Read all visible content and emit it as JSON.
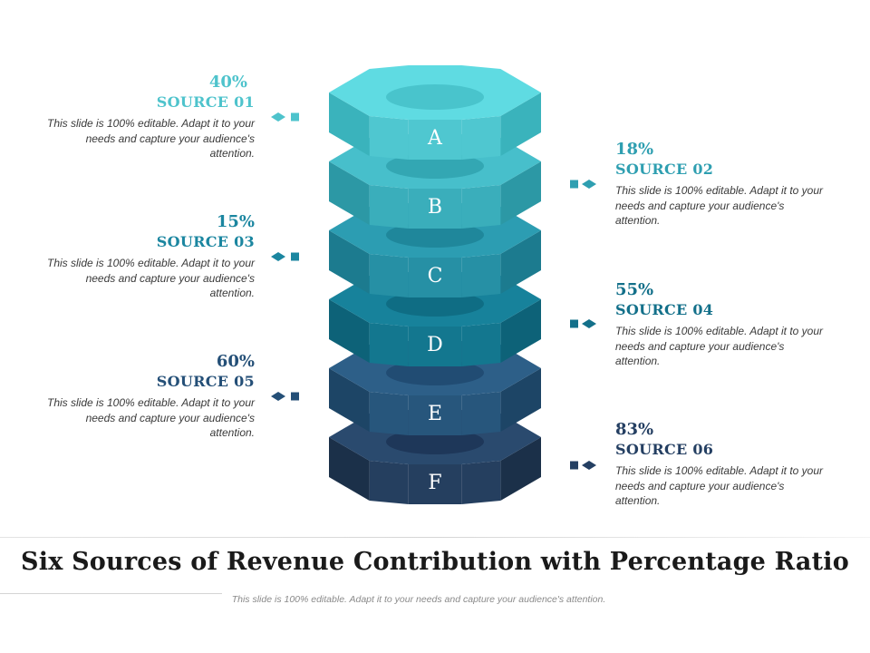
{
  "diagram": {
    "layers": [
      {
        "letter": "A",
        "top": "#5fdbe2",
        "side": "#4fc7d0",
        "side_dark": "#3ab3bc",
        "hole": "#49c4cc"
      },
      {
        "letter": "B",
        "top": "#47bfcb",
        "side": "#3aaebb",
        "side_dark": "#2c98a5",
        "hole": "#33a7b3"
      },
      {
        "letter": "C",
        "top": "#2c9db2",
        "side": "#2690a5",
        "side_dark": "#1c7b8f",
        "hole": "#1f879b"
      },
      {
        "letter": "D",
        "top": "#17829b",
        "side": "#13778f",
        "side_dark": "#0d6278",
        "hole": "#0f6d84"
      },
      {
        "letter": "E",
        "top": "#2d5f88",
        "side": "#27567c",
        "side_dark": "#1d4566",
        "hole": "#214c73"
      },
      {
        "letter": "F",
        "top": "#2a4a6e",
        "side": "#253f5f",
        "side_dark": "#1b3049",
        "hole": "#1e3759"
      }
    ]
  },
  "items": [
    {
      "pct": "40%",
      "source": "SOURCE 01",
      "desc": "This slide is 100% editable. Adapt it to your needs and capture your audience's attention.",
      "color": "#4ec3cc"
    },
    {
      "pct": "18%",
      "source": "SOURCE 02",
      "desc": "This slide is 100% editable. Adapt it to your needs and capture your audience's attention.",
      "color": "#2f9fb1"
    },
    {
      "pct": "15%",
      "source": "SOURCE 03",
      "desc": "This slide is 100% editable. Adapt it to your needs and capture your audience's attention.",
      "color": "#1b86a0"
    },
    {
      "pct": "55%",
      "source": "SOURCE 04",
      "desc": "This slide is 100% editable. Adapt it to your needs and capture your audience's attention.",
      "color": "#13708a"
    },
    {
      "pct": "60%",
      "source": "SOURCE 05",
      "desc": "This slide is 100% editable. Adapt it to your needs and capture your audience's attention.",
      "color": "#244f77"
    },
    {
      "pct": "83%",
      "source": "SOURCE 06",
      "desc": "This slide is 100% editable. Adapt it to your needs and capture your audience's attention.",
      "color": "#243f62"
    }
  ],
  "footer": {
    "title": "Six Sources of Revenue Contribution with Percentage Ratio",
    "subtitle": "This slide is 100% editable. Adapt it to your needs and capture your audience's attention."
  }
}
